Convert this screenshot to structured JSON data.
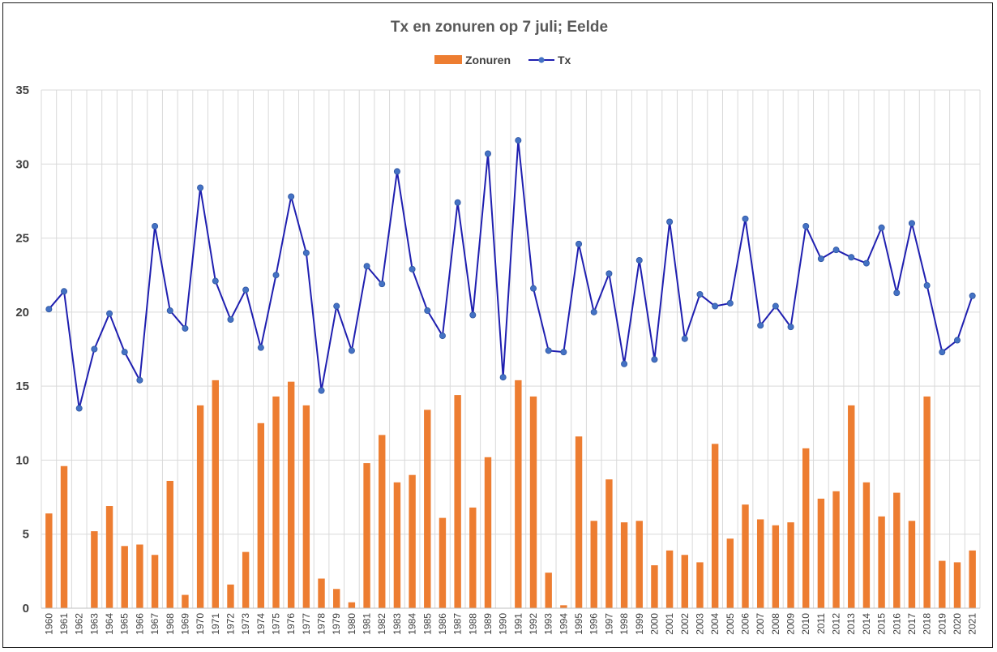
{
  "chart_data": {
    "type": "bar+line",
    "title": "Tx en zonuren op 7 juli; Eelde",
    "xlabel": "",
    "ylabel": "",
    "ylim": [
      0,
      35
    ],
    "yticks": [
      0,
      5,
      10,
      15,
      20,
      25,
      30,
      35
    ],
    "grid": true,
    "legend_position": "top-center",
    "categories": [
      "1960",
      "1961",
      "1962",
      "1963",
      "1964",
      "1965",
      "1966",
      "1967",
      "1968",
      "1969",
      "1970",
      "1971",
      "1972",
      "1973",
      "1974",
      "1975",
      "1976",
      "1977",
      "1978",
      "1979",
      "1980",
      "1981",
      "1982",
      "1983",
      "1984",
      "1985",
      "1986",
      "1987",
      "1988",
      "1989",
      "1990",
      "1991",
      "1992",
      "1993",
      "1994",
      "1995",
      "1996",
      "1997",
      "1998",
      "1999",
      "2000",
      "2001",
      "2002",
      "2003",
      "2004",
      "2005",
      "2006",
      "2007",
      "2008",
      "2009",
      "2010",
      "2011",
      "2012",
      "2013",
      "2014",
      "2015",
      "2016",
      "2017",
      "2018",
      "2019",
      "2020",
      "2021"
    ],
    "series": [
      {
        "name": "Zonuren",
        "type": "bar",
        "color": "#ED7D31",
        "values": [
          6.4,
          9.6,
          0,
          5.2,
          6.9,
          4.2,
          4.3,
          3.6,
          8.6,
          0.9,
          13.7,
          15.4,
          1.6,
          3.8,
          12.5,
          14.3,
          15.3,
          13.7,
          2.0,
          1.3,
          0.4,
          9.8,
          11.7,
          8.5,
          9.0,
          13.4,
          6.1,
          14.4,
          6.8,
          10.2,
          0,
          15.4,
          14.3,
          2.4,
          0.2,
          11.6,
          5.9,
          8.7,
          5.8,
          5.9,
          2.9,
          3.9,
          3.6,
          3.1,
          11.1,
          4.7,
          7.0,
          6.0,
          5.6,
          5.8,
          10.8,
          7.4,
          7.9,
          13.7,
          8.5,
          6.2,
          7.8,
          5.9,
          14.3,
          3.2,
          3.1,
          3.9
        ]
      },
      {
        "name": "Tx",
        "type": "line",
        "color": "#1F1FB0",
        "marker_color": "#4472C4",
        "values": [
          20.2,
          21.4,
          13.5,
          17.5,
          19.9,
          17.3,
          15.4,
          25.8,
          20.1,
          18.9,
          28.4,
          22.1,
          19.5,
          21.5,
          17.6,
          22.5,
          27.8,
          24.0,
          14.7,
          20.4,
          17.4,
          23.1,
          21.9,
          29.5,
          22.9,
          20.1,
          18.4,
          27.4,
          19.8,
          30.7,
          15.6,
          31.6,
          21.6,
          17.4,
          17.3,
          24.6,
          20.0,
          22.6,
          16.5,
          23.5,
          16.8,
          26.1,
          18.2,
          21.2,
          20.4,
          20.6,
          26.3,
          19.1,
          20.4,
          19.0,
          25.8,
          23.6,
          24.2,
          23.7,
          23.3,
          25.7,
          21.3,
          26.0,
          21.8,
          17.3,
          18.1,
          21.1
        ]
      }
    ]
  }
}
